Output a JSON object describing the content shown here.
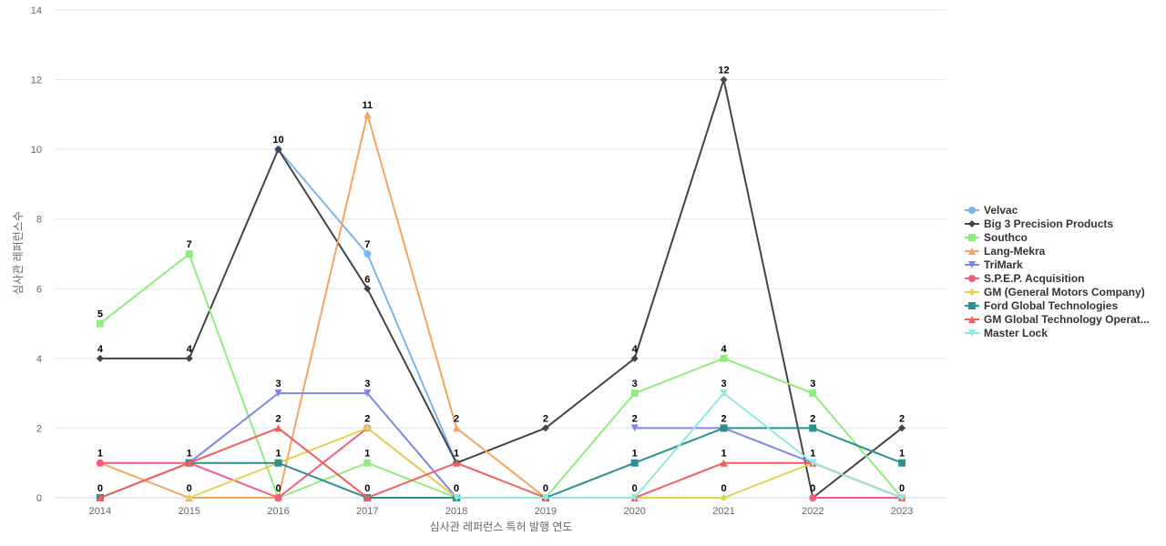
{
  "chart_data": {
    "type": "line",
    "title": "",
    "xlabel": "심사관 레퍼런스 특허 발행 연도",
    "ylabel": "심사관 레퍼런스수",
    "categories": [
      "2014",
      "2015",
      "2016",
      "2017",
      "2018",
      "2019",
      "2020",
      "2021",
      "2022",
      "2023"
    ],
    "ylim": [
      0,
      14
    ],
    "yticks": [
      0,
      2,
      4,
      6,
      8,
      10,
      12,
      14
    ],
    "grid": true,
    "legend_position": "right",
    "series": [
      {
        "name": "Velvac",
        "color": "#7cb5ec",
        "marker": "circle",
        "values": [
          null,
          null,
          10,
          7,
          1,
          null,
          null,
          null,
          null,
          null
        ]
      },
      {
        "name": "Big 3 Precision Products",
        "color": "#434348",
        "marker": "diamond",
        "values": [
          4,
          4,
          10,
          6,
          1,
          2,
          4,
          12,
          0,
          2
        ]
      },
      {
        "name": "Southco",
        "color": "#90ed7d",
        "marker": "square",
        "values": [
          5,
          7,
          0,
          1,
          0,
          0,
          3,
          4,
          3,
          0
        ]
      },
      {
        "name": "Lang-Mekra",
        "color": "#f7a35c",
        "marker": "triangle",
        "values": [
          1,
          0,
          0,
          11,
          2,
          0,
          null,
          null,
          null,
          null
        ]
      },
      {
        "name": "TriMark",
        "color": "#8085e9",
        "marker": "triangle-down",
        "values": [
          null,
          1,
          3,
          3,
          0,
          null,
          2,
          2,
          1,
          0
        ]
      },
      {
        "name": "S.P.E.P. Acquisition",
        "color": "#f15c80",
        "marker": "circle",
        "values": [
          1,
          1,
          0,
          2,
          0,
          null,
          null,
          null,
          0,
          0
        ]
      },
      {
        "name": "GM (General Motors Company)",
        "color": "#e4d354",
        "marker": "diamond",
        "values": [
          null,
          0,
          1,
          2,
          0,
          null,
          0,
          0,
          1,
          0
        ]
      },
      {
        "name": "Ford Global Technologies",
        "color": "#2b908f",
        "marker": "square",
        "values": [
          0,
          1,
          1,
          0,
          0,
          0,
          1,
          2,
          2,
          1
        ]
      },
      {
        "name": "GM Global Technology Operat...",
        "color": "#f45b5b",
        "marker": "triangle",
        "values": [
          0,
          1,
          2,
          0,
          1,
          0,
          0,
          1,
          1,
          0
        ]
      },
      {
        "name": "Master Lock",
        "color": "#91e8e1",
        "marker": "triangle-down",
        "values": [
          null,
          null,
          null,
          null,
          0,
          0,
          0,
          3,
          1,
          0
        ]
      }
    ],
    "data_labels": [
      {
        "x": "2014",
        "value": 5
      },
      {
        "x": "2014",
        "value": 4
      },
      {
        "x": "2014",
        "value": 1
      },
      {
        "x": "2014",
        "value": 0
      },
      {
        "x": "2015",
        "value": 7
      },
      {
        "x": "2015",
        "value": 4
      },
      {
        "x": "2015",
        "value": 1
      },
      {
        "x": "2015",
        "value": 0
      },
      {
        "x": "2016",
        "value": 10
      },
      {
        "x": "2016",
        "value": 3
      },
      {
        "x": "2016",
        "value": 2
      },
      {
        "x": "2016",
        "value": 1
      },
      {
        "x": "2016",
        "value": 0
      },
      {
        "x": "2017",
        "value": 11
      },
      {
        "x": "2017",
        "value": 7
      },
      {
        "x": "2017",
        "value": 6
      },
      {
        "x": "2017",
        "value": 3
      },
      {
        "x": "2017",
        "value": 2
      },
      {
        "x": "2017",
        "value": 1
      },
      {
        "x": "2017",
        "value": 0
      },
      {
        "x": "2018",
        "value": 2
      },
      {
        "x": "2018",
        "value": 1
      },
      {
        "x": "2018",
        "value": 0
      },
      {
        "x": "2019",
        "value": 2
      },
      {
        "x": "2019",
        "value": 0
      },
      {
        "x": "2020",
        "value": 4
      },
      {
        "x": "2020",
        "value": 3
      },
      {
        "x": "2020",
        "value": 2
      },
      {
        "x": "2020",
        "value": 1
      },
      {
        "x": "2020",
        "value": 0
      },
      {
        "x": "2021",
        "value": 12
      },
      {
        "x": "2021",
        "value": 4
      },
      {
        "x": "2021",
        "value": 3
      },
      {
        "x": "2021",
        "value": 2
      },
      {
        "x": "2021",
        "value": 1
      },
      {
        "x": "2021",
        "value": 0
      },
      {
        "x": "2022",
        "value": 3
      },
      {
        "x": "2022",
        "value": 2
      },
      {
        "x": "2022",
        "value": 1
      },
      {
        "x": "2022",
        "value": 0
      },
      {
        "x": "2023",
        "value": 2
      },
      {
        "x": "2023",
        "value": 1
      },
      {
        "x": "2023",
        "value": 0
      }
    ]
  }
}
